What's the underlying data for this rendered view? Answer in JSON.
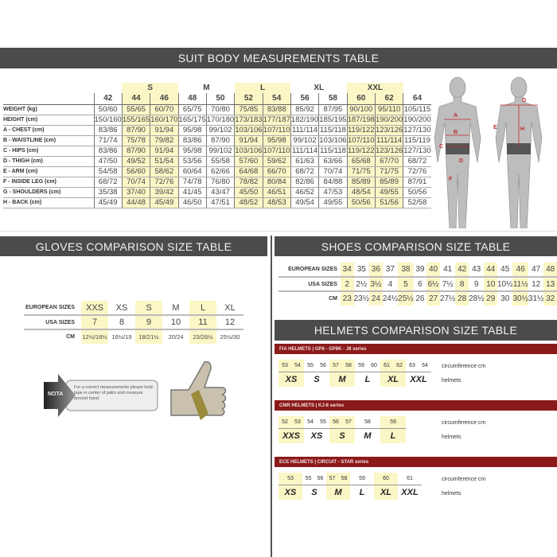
{
  "colors": {
    "header_bar": "#4b4b4b",
    "highlight": "#fbf6c6",
    "helmet_bar": "#8b1a1a"
  },
  "suit": {
    "title": "SUIT BODY MEASUREMENTS TABLE",
    "groups": [
      {
        "label": "S",
        "cols": [
          1,
          2
        ]
      },
      {
        "label": "M",
        "cols": [
          3,
          4
        ]
      },
      {
        "label": "L",
        "cols": [
          5,
          6
        ]
      },
      {
        "label": "XL",
        "cols": [
          7,
          8
        ]
      },
      {
        "label": "XXL",
        "cols": [
          9,
          10
        ]
      }
    ],
    "sizes": [
      "42",
      "44",
      "46",
      "48",
      "50",
      "52",
      "54",
      "56",
      "58",
      "60",
      "62",
      "64"
    ],
    "highlight_cols": [
      1,
      2,
      5,
      6,
      9,
      10
    ],
    "rows": [
      {
        "label": "WEIGHT (kg)",
        "values": [
          "50/60",
          "55/65",
          "60/70",
          "65/75",
          "70/80",
          "75/85",
          "83/88",
          "85/92",
          "87/95",
          "90/100",
          "95/110",
          "105/115"
        ]
      },
      {
        "label": "HEIGHT (cm)",
        "values": [
          "150/160",
          "155/165",
          "160/170",
          "165/175",
          "170/180",
          "173/183",
          "177/187",
          "182/190",
          "185/195",
          "187/198",
          "190/200",
          "190/200"
        ]
      },
      {
        "label": "A - CHEST (cm)",
        "values": [
          "83/86",
          "87/90",
          "91/94",
          "95/98",
          "99/102",
          "103/106",
          "107/110",
          "111/114",
          "115/118",
          "119/122",
          "123/126",
          "127/130"
        ]
      },
      {
        "label": "B - WAISTLINE (cm)",
        "values": [
          "71/74",
          "75/78",
          "79/82",
          "83/86",
          "87/90",
          "91/94",
          "95/98",
          "99/102",
          "103/106",
          "107/110",
          "111/114",
          "115/119"
        ]
      },
      {
        "label": "C - HIPS (cm)",
        "values": [
          "83/86",
          "87/90",
          "91/94",
          "95/98",
          "99/102",
          "103/106",
          "107/110",
          "111/114",
          "115/118",
          "119/122",
          "123/126",
          "127/130"
        ]
      },
      {
        "label": "D - THIGH (cm)",
        "values": [
          "47/50",
          "49/52",
          "51/54",
          "53/56",
          "55/58",
          "57/60",
          "59/62",
          "61/63",
          "63/66",
          "65/68",
          "67/70",
          "68/72"
        ]
      },
      {
        "label": "E - ARM (cm)",
        "values": [
          "54/58",
          "56/60",
          "58/62",
          "60/64",
          "62/66",
          "64/68",
          "66/70",
          "68/72",
          "70/74",
          "71/75",
          "71/75",
          "72/76"
        ]
      },
      {
        "label": "F - INSIDE LEG (cm)",
        "values": [
          "68/72",
          "70/74",
          "72/76",
          "74/78",
          "76/80",
          "78/82",
          "80/84",
          "82/86",
          "84/88",
          "85/89",
          "85/89",
          "87/91"
        ]
      },
      {
        "label": "G - SHOULDERS (cm)",
        "values": [
          "35/38",
          "37/40",
          "39/42",
          "41/45",
          "43/47",
          "45/50",
          "46/51",
          "46/52",
          "47/53",
          "48/54",
          "49/55",
          "50/56"
        ]
      },
      {
        "label": "H - BACK (cm)",
        "values": [
          "45/49",
          "44/48",
          "45/49",
          "46/50",
          "47/51",
          "48/52",
          "48/53",
          "49/54",
          "49/55",
          "50/56",
          "51/56",
          "52/58"
        ]
      }
    ],
    "figure_labels": [
      "A",
      "B",
      "C",
      "D",
      "E",
      "F",
      "G",
      "H"
    ]
  },
  "gloves": {
    "title": "GLOVES COMPARISON SIZE TABLE",
    "highlight_cols": [
      0,
      2,
      4
    ],
    "rows": [
      {
        "label": "EUROPEAN SIZES",
        "values": [
          "XXS",
          "XS",
          "S",
          "M",
          "L",
          "XL"
        ]
      },
      {
        "label": "USA SIZES",
        "values": [
          "7",
          "8",
          "9",
          "10",
          "11",
          "12"
        ]
      },
      {
        "label": "CM",
        "values": [
          "12½/16½",
          "16½/19",
          "18/21½",
          "20/24",
          "23/26½",
          "25½/30"
        ]
      }
    ],
    "nota_label": "NOTA",
    "nota_text": "For a correct measurements please hold tape in center of palm and measure around hand."
  },
  "shoes": {
    "title": "SHOES COMPARISON SIZE TABLE",
    "highlight_cols": [
      0,
      2,
      4,
      6,
      8,
      10,
      12,
      14
    ],
    "rows": [
      {
        "label": "EUROPEAN SIZES",
        "values": [
          "34",
          "35",
          "36",
          "37",
          "38",
          "39",
          "40",
          "41",
          "42",
          "43",
          "44",
          "45",
          "46",
          "47",
          "48"
        ]
      },
      {
        "label": "USA SIZES",
        "values": [
          "2",
          "2½",
          "3½",
          "4",
          "5",
          "6",
          "6½",
          "7½",
          "8",
          "9",
          "10",
          "10½",
          "11½",
          "12",
          "13"
        ]
      },
      {
        "label": "CM",
        "values": [
          "23",
          "23½",
          "24",
          "24½",
          "25½",
          "26",
          "27",
          "27½",
          "28",
          "28½",
          "29",
          "30",
          "30½",
          "31½",
          "32"
        ]
      }
    ]
  },
  "helmets": {
    "title": "HELMETS COMPARISON SIZE TABLE",
    "circ_label": "circumference cm",
    "size_label": "helmets",
    "sections": [
      {
        "title": "FIA HELMETS | GP8 - GP8K - J8 series",
        "groups": [
          {
            "size": "XS",
            "circ": [
              "53",
              "54"
            ],
            "hl": true
          },
          {
            "size": "S",
            "circ": [
              "55",
              "56"
            ],
            "hl": false
          },
          {
            "size": "M",
            "circ": [
              "57",
              "58"
            ],
            "hl": true
          },
          {
            "size": "L",
            "circ": [
              "59",
              "60"
            ],
            "hl": false
          },
          {
            "size": "XL",
            "circ": [
              "61",
              "62"
            ],
            "hl": true
          },
          {
            "size": "XXL",
            "circ": [
              "63",
              "64"
            ],
            "hl": false
          }
        ]
      },
      {
        "title": "CMR HELMETS | KJ-8 series",
        "groups": [
          {
            "size": "XXS",
            "circ": [
              "52",
              "53"
            ],
            "hl": true
          },
          {
            "size": "XS",
            "circ": [
              "54",
              "55"
            ],
            "hl": false
          },
          {
            "size": "S",
            "circ": [
              "56",
              "57"
            ],
            "hl": true
          },
          {
            "size": "M",
            "circ": [
              "58"
            ],
            "hl": false
          },
          {
            "size": "L",
            "circ": [
              "59"
            ],
            "hl": true
          }
        ]
      },
      {
        "title": "ECE HELMETS | CIRCUIT - STAR series",
        "groups": [
          {
            "size": "XS",
            "circ": [
              "53"
            ],
            "hl": true
          },
          {
            "size": "S",
            "circ": [
              "55",
              "56"
            ],
            "hl": false
          },
          {
            "size": "M",
            "circ": [
              "57",
              "58"
            ],
            "hl": true
          },
          {
            "size": "L",
            "circ": [
              "59"
            ],
            "hl": false
          },
          {
            "size": "XL",
            "circ": [
              "60"
            ],
            "hl": true
          },
          {
            "size": "XXL",
            "circ": [
              "61"
            ],
            "hl": false
          }
        ]
      }
    ]
  }
}
